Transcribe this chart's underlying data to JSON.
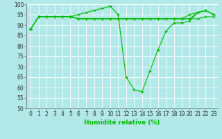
{
  "xlabel": "Humidité relative (%)",
  "background_color": "#b2e8e8",
  "grid_color": "#ffffff",
  "line_color": "#00bb00",
  "xlim": [
    -0.5,
    23.5
  ],
  "ylim": [
    50,
    100
  ],
  "xticks": [
    0,
    1,
    2,
    3,
    4,
    5,
    6,
    7,
    8,
    9,
    10,
    11,
    12,
    13,
    14,
    15,
    16,
    17,
    18,
    19,
    20,
    21,
    22,
    23
  ],
  "yticks": [
    50,
    55,
    60,
    65,
    70,
    75,
    80,
    85,
    90,
    95,
    100
  ],
  "series": [
    [
      88,
      94,
      94,
      94,
      94,
      94,
      95,
      96,
      97,
      98,
      99,
      95,
      65,
      59,
      58,
      68,
      78,
      87,
      91,
      91,
      92,
      96,
      97,
      95
    ],
    [
      88,
      94,
      94,
      94,
      94,
      94,
      93,
      93,
      93,
      93,
      93,
      93,
      93,
      93,
      93,
      93,
      93,
      93,
      93,
      93,
      95,
      96,
      97,
      95
    ],
    [
      88,
      94,
      94,
      94,
      94,
      94,
      93,
      93,
      93,
      93,
      93,
      93,
      93,
      93,
      93,
      93,
      93,
      93,
      93,
      93,
      93,
      96,
      97,
      95
    ],
    [
      88,
      94,
      94,
      94,
      94,
      94,
      93,
      93,
      93,
      93,
      93,
      93,
      93,
      93,
      93,
      93,
      93,
      93,
      93,
      93,
      93,
      93,
      94,
      94
    ]
  ],
  "xlabel_fontsize": 6.5,
  "tick_fontsize": 5.5
}
